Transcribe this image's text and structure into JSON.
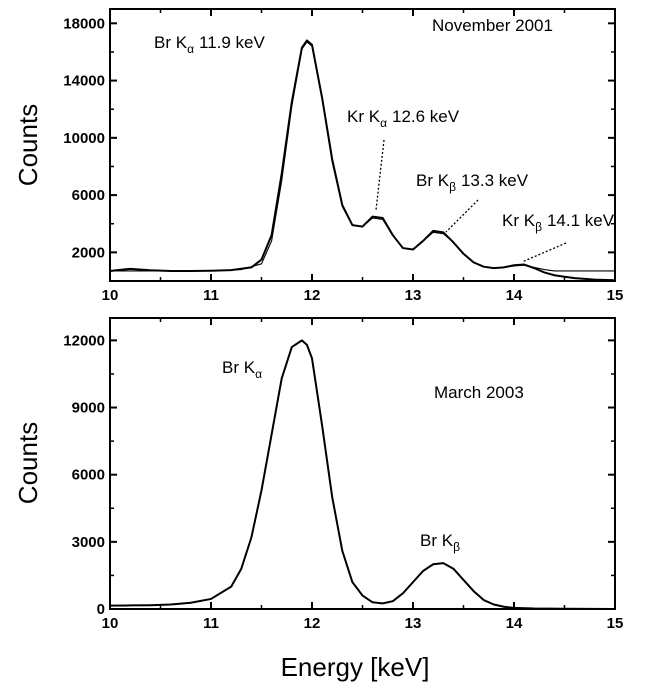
{
  "figure": {
    "xlabel": "Energy [keV]"
  },
  "chart_data": [
    {
      "type": "line",
      "title": "November 2001",
      "xlabel": "",
      "ylabel": "Counts",
      "xlim": [
        10,
        15
      ],
      "ylim": [
        0,
        19000
      ],
      "x_ticks": [
        "10",
        "11",
        "12",
        "13",
        "14",
        "15"
      ],
      "y_ticks": [
        "2000",
        "6000",
        "10000",
        "14000",
        "18000"
      ],
      "annotations": [
        {
          "label": "Br K",
          "sub": "α",
          "energy": "11.9 keV"
        },
        {
          "label": "Kr K",
          "sub": "α",
          "energy": "12.6 keV"
        },
        {
          "label": "Br K",
          "sub": "β",
          "energy": "13.3 keV"
        },
        {
          "label": "Kr K",
          "sub": "β",
          "energy": "14.1 keV"
        }
      ],
      "series": [
        {
          "style": "measured",
          "x": [
            10.0,
            10.2,
            10.4,
            10.6,
            10.8,
            11.0,
            11.2,
            11.4,
            11.5,
            11.6,
            11.7,
            11.8,
            11.9,
            11.95,
            12.0,
            12.1,
            12.2,
            12.3,
            12.4,
            12.5,
            12.6,
            12.7,
            12.8,
            12.9,
            13.0,
            13.1,
            13.2,
            13.3,
            13.4,
            13.5,
            13.6,
            13.7,
            13.8,
            13.9,
            14.0,
            14.1,
            14.2,
            14.3,
            14.4,
            14.5,
            14.6,
            14.8,
            15.0
          ],
          "y": [
            700,
            850,
            750,
            700,
            700,
            720,
            760,
            950,
            1500,
            3200,
            7500,
            12500,
            16300,
            16800,
            16500,
            12800,
            8500,
            5300,
            3900,
            3800,
            4500,
            4400,
            3200,
            2300,
            2200,
            2800,
            3500,
            3400,
            2700,
            1900,
            1300,
            1000,
            900,
            950,
            1100,
            1150,
            900,
            600,
            400,
            300,
            200,
            100,
            50
          ]
        },
        {
          "style": "fit",
          "x": [
            10.0,
            10.5,
            11.0,
            11.3,
            11.5,
            11.6,
            11.7,
            11.8,
            11.9,
            11.95,
            12.0,
            12.1,
            12.2,
            12.3,
            12.4,
            12.5,
            12.6,
            12.7,
            12.8,
            12.9,
            13.0,
            13.1,
            13.2,
            13.3,
            13.4,
            13.5,
            13.6,
            13.7,
            13.8,
            13.9,
            14.0,
            14.1,
            14.2,
            14.3,
            14.4,
            14.5,
            14.6,
            14.8,
            15.0
          ],
          "y": [
            700,
            700,
            700,
            800,
            1200,
            2800,
            7000,
            12200,
            16200,
            16700,
            16400,
            12700,
            8300,
            5200,
            3900,
            3800,
            4400,
            4300,
            3200,
            2300,
            2200,
            2800,
            3400,
            3300,
            2700,
            1900,
            1300,
            1000,
            900,
            950,
            1050,
            1100,
            950,
            800,
            700,
            700,
            700,
            700,
            700
          ]
        }
      ]
    },
    {
      "type": "line",
      "title": "March 2003",
      "xlabel": "",
      "ylabel": "Counts",
      "xlim": [
        10,
        15
      ],
      "ylim": [
        0,
        13000
      ],
      "x_ticks": [
        "10",
        "11",
        "12",
        "13",
        "14",
        "15"
      ],
      "y_ticks": [
        "0",
        "3000",
        "6000",
        "9000",
        "12000"
      ],
      "annotations": [
        {
          "label": "Br K",
          "sub": "α",
          "energy": ""
        },
        {
          "label": "Br K",
          "sub": "β",
          "energy": ""
        }
      ],
      "series": [
        {
          "style": "measured",
          "x": [
            10.0,
            10.2,
            10.4,
            10.6,
            10.8,
            11.0,
            11.2,
            11.3,
            11.4,
            11.5,
            11.6,
            11.7,
            11.8,
            11.9,
            11.95,
            12.0,
            12.1,
            12.2,
            12.3,
            12.4,
            12.5,
            12.6,
            12.7,
            12.8,
            12.9,
            13.0,
            13.1,
            13.2,
            13.3,
            13.4,
            13.5,
            13.6,
            13.7,
            13.8,
            13.9,
            14.0,
            14.2,
            14.5,
            15.0
          ],
          "y": [
            150,
            160,
            170,
            200,
            280,
            450,
            1000,
            1800,
            3200,
            5300,
            7800,
            10300,
            11700,
            12000,
            11800,
            11200,
            8200,
            5000,
            2600,
            1200,
            600,
            300,
            250,
            350,
            700,
            1200,
            1700,
            2000,
            2050,
            1800,
            1300,
            800,
            400,
            200,
            100,
            50,
            20,
            10,
            0
          ]
        }
      ]
    }
  ]
}
